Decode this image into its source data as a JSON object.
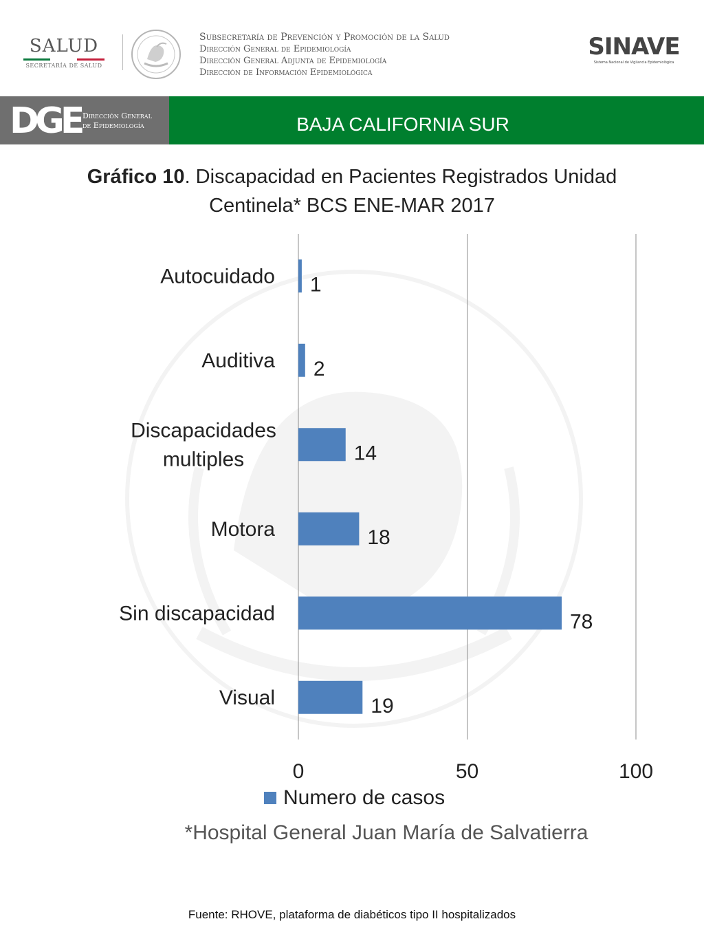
{
  "header": {
    "salud_logo": {
      "word": "SALUD",
      "subtitle": "SECRETARÍA DE SALUD"
    },
    "seal_icon": "mexican-coat-of-arms",
    "subsecretaria_lines": [
      "Subsecretaría de Prevención y Promoción de la Salud",
      "Dirección General de Epidemiología",
      "Dirección General Adjunta de Epidemiología",
      "Dirección de Información Epidemiológica"
    ],
    "sinave_logo": {
      "word": "SINAVE",
      "subtitle": "Sistema Nacional de Vigilancia Epidemiológica"
    }
  },
  "banner": {
    "dge_logo": {
      "letters": "DGE",
      "line1": "Dirección General",
      "line2": "de Epidemiología"
    },
    "state": "BAJA CALIFORNIA SUR",
    "colors": {
      "gray": "#6f6f6f",
      "green": "#007f2e"
    }
  },
  "title": {
    "bold": "Gráfico 10",
    "rest": ". Discapacidad en Pacientes Registrados  Unidad Centinela* BCS ENE-MAR 2017"
  },
  "chart_data": {
    "type": "bar",
    "orientation": "horizontal",
    "categories": [
      "Autocuidado",
      "Auditiva",
      "Discapacidades multiples",
      "Motora",
      "Sin discapacidad",
      "Visual"
    ],
    "series": [
      {
        "name": "Numero de casos",
        "values": [
          1,
          2,
          14,
          18,
          78,
          19
        ],
        "color": "#4f81bd"
      }
    ],
    "data_labels": [
      "1",
      "2",
      "14",
      "18",
      "78",
      "19"
    ],
    "xlim": [
      0,
      100
    ],
    "x_ticks": [
      0,
      50,
      100
    ],
    "grid": true,
    "legend_position": "bottom"
  },
  "footnote": "*Hospital General Juan María de Salvatierra",
  "source": "Fuente: RHOVE, plataforma de diabéticos tipo II hospitalizados"
}
